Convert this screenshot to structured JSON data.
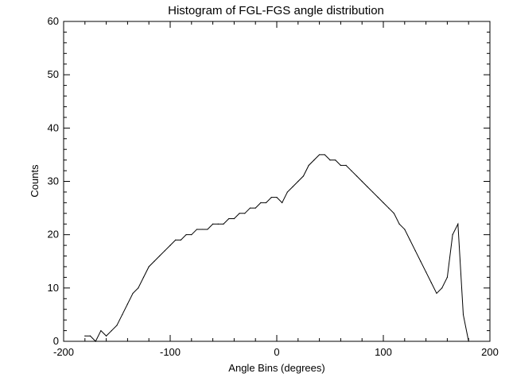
{
  "chart_data": {
    "type": "line",
    "title": "Histogram of FGL-FGS angle distribution",
    "xlabel": "Angle Bins (degrees)",
    "ylabel": "Counts",
    "xlim": [
      -200,
      200
    ],
    "ylim": [
      0,
      60
    ],
    "xticks": [
      -200,
      -100,
      0,
      100,
      200
    ],
    "yticks": [
      0,
      10,
      20,
      30,
      40,
      50,
      60
    ],
    "grid": false,
    "legend": "none",
    "line_color": "#000000",
    "series": [
      {
        "x": [
          -180,
          -175,
          -170,
          -165,
          -160,
          -155,
          -150,
          -145,
          -140,
          -135,
          -130,
          -125,
          -120,
          -115,
          -110,
          -105,
          -100,
          -95,
          -90,
          -85,
          -80,
          -75,
          -70,
          -65,
          -60,
          -55,
          -50,
          -45,
          -40,
          -35,
          -30,
          -25,
          -20,
          -15,
          -10,
          -5,
          0,
          5,
          10,
          15,
          20,
          25,
          30,
          35,
          40,
          45,
          50,
          55,
          60,
          65,
          70,
          75,
          80,
          85,
          90,
          95,
          100,
          105,
          110,
          115,
          120,
          125,
          130,
          135,
          140,
          145,
          150,
          155,
          160,
          165,
          170,
          175,
          180
        ],
        "y": [
          1,
          1,
          0,
          2,
          1,
          2,
          3,
          5,
          7,
          9,
          10,
          12,
          14,
          15,
          16,
          17,
          18,
          19,
          19,
          20,
          20,
          21,
          21,
          21,
          22,
          22,
          22,
          23,
          23,
          24,
          24,
          25,
          25,
          26,
          26,
          27,
          27,
          26,
          28,
          29,
          30,
          31,
          33,
          34,
          35,
          35,
          34,
          34,
          33,
          33,
          32,
          31,
          30,
          29,
          28,
          27,
          26,
          25,
          24,
          22,
          21,
          19,
          17,
          15,
          13,
          11,
          9,
          10,
          12,
          20,
          22,
          5,
          0
        ]
      }
    ]
  }
}
